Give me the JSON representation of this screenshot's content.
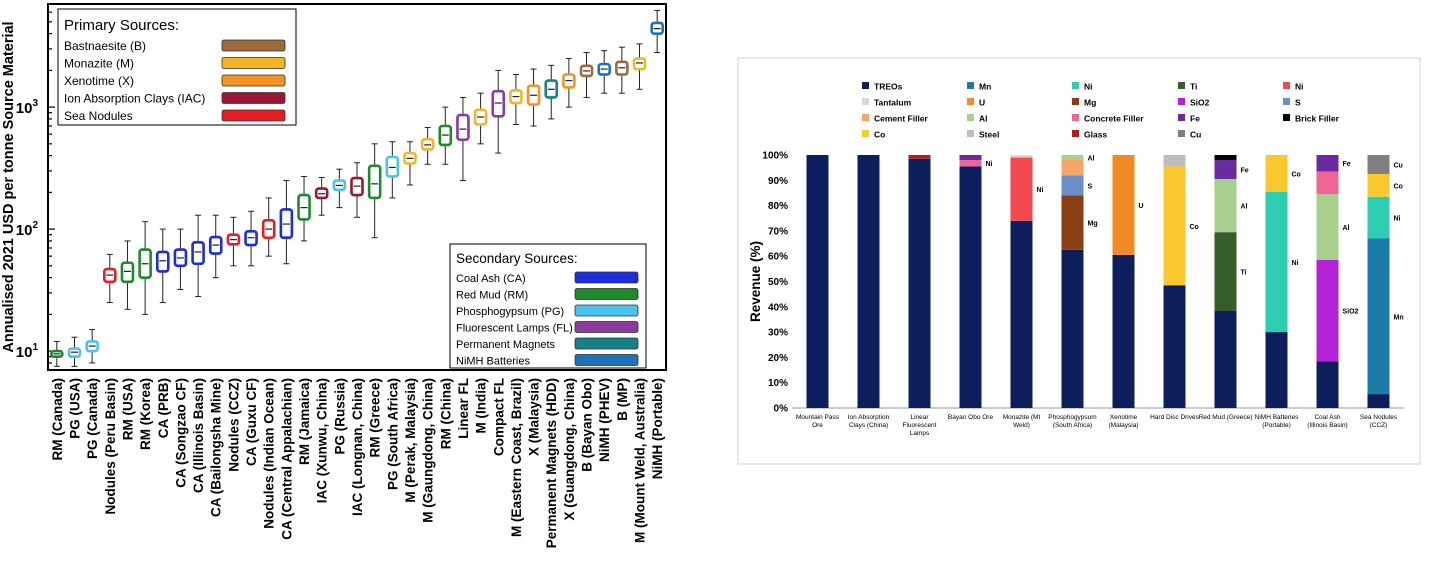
{
  "chart_data": [
    {
      "type": "boxplot",
      "title": "",
      "ylabel": "Annualised 2021 USD per tonne Source Material",
      "yscale": "log",
      "ylim": [
        7,
        7000
      ],
      "yticks": [
        10,
        100,
        1000
      ],
      "ytick_labels": [
        "10",
        "10",
        "10"
      ],
      "ytick_sup": [
        "1",
        "2",
        "3"
      ],
      "legend_primary": {
        "title": "Primary Sources:",
        "items": [
          {
            "label": "Bastnaesite (B)",
            "color": "#9C6A3C"
          },
          {
            "label": "Monazite (M)",
            "color": "#F1B52A"
          },
          {
            "label": "Xenotime (X)",
            "color": "#F39322"
          },
          {
            "label": "Ion Absorption Clays (IAC)",
            "color": "#9C1733"
          },
          {
            "label": "Sea Nodules",
            "color": "#E51E25"
          }
        ]
      },
      "legend_secondary": {
        "title": "Secondary Sources:",
        "items": [
          {
            "label": "Coal Ash (CA)",
            "color": "#1C2DDC"
          },
          {
            "label": "Red Mud (RM)",
            "color": "#1E8A2A"
          },
          {
            "label": "Phosphogypsum (PG)",
            "color": "#49C3EE"
          },
          {
            "label": "Fluorescent Lamps (FL)",
            "color": "#8B3A9E"
          },
          {
            "label": "Permanent Magnets",
            "color": "#177F86"
          },
          {
            "label": "NiMH Batteries",
            "color": "#1D71B8"
          }
        ]
      },
      "boxes": [
        {
          "label": "RM (Canada)",
          "color": "#1E8A2A",
          "med": 9.5,
          "q1": 9.0,
          "q3": 10.0,
          "min": 7.5,
          "max": 12
        },
        {
          "label": "PG (USA)",
          "color": "#49C3EE",
          "med": 9.8,
          "q1": 9.0,
          "q3": 10.5,
          "min": 7.5,
          "max": 13
        },
        {
          "label": "PG (Canada)",
          "color": "#49C3EE",
          "med": 11,
          "q1": 10,
          "q3": 12,
          "min": 8,
          "max": 15
        },
        {
          "label": "Nodules (Peru Basin)",
          "color": "#E51E25",
          "med": 42,
          "q1": 37,
          "q3": 47,
          "min": 25,
          "max": 62
        },
        {
          "label": "RM (USA)",
          "color": "#1E8A2A",
          "med": 45,
          "q1": 37,
          "q3": 53,
          "min": 22,
          "max": 80
        },
        {
          "label": "RM (Korea)",
          "color": "#1E8A2A",
          "med": 52,
          "q1": 40,
          "q3": 68,
          "min": 20,
          "max": 115
        },
        {
          "label": "CA (PRB)",
          "color": "#1C2DDC",
          "med": 55,
          "q1": 45,
          "q3": 65,
          "min": 25,
          "max": 100
        },
        {
          "label": "CA (Songzao CF)",
          "color": "#1C2DDC",
          "med": 58,
          "q1": 50,
          "q3": 68,
          "min": 32,
          "max": 100
        },
        {
          "label": "CA (Illinois Basin)",
          "color": "#1C2DDC",
          "med": 65,
          "q1": 52,
          "q3": 78,
          "min": 28,
          "max": 130
        },
        {
          "label": "CA (Bailongsha Mine)",
          "color": "#1C2DDC",
          "med": 74,
          "q1": 63,
          "q3": 86,
          "min": 40,
          "max": 130
        },
        {
          "label": "Nodules (CCZ)",
          "color": "#E51E25",
          "med": 82,
          "q1": 75,
          "q3": 90,
          "min": 50,
          "max": 125
        },
        {
          "label": "CA (Guxu CF)",
          "color": "#1C2DDC",
          "med": 85,
          "q1": 74,
          "q3": 96,
          "min": 50,
          "max": 140
        },
        {
          "label": "Nodules (Indian Ocean)",
          "color": "#E51E25",
          "med": 100,
          "q1": 85,
          "q3": 118,
          "min": 60,
          "max": 180
        },
        {
          "label": "CA (Central Appalachian)",
          "color": "#1C2DDC",
          "med": 110,
          "q1": 85,
          "q3": 145,
          "min": 52,
          "max": 250
        },
        {
          "label": "RM (Jamaica)",
          "color": "#1E8A2A",
          "med": 150,
          "q1": 120,
          "q3": 190,
          "min": 80,
          "max": 270
        },
        {
          "label": "IAC (Xunwu, China)",
          "color": "#9C1733",
          "med": 195,
          "q1": 180,
          "q3": 215,
          "min": 130,
          "max": 265
        },
        {
          "label": "PG (Russia)",
          "color": "#49C3EE",
          "med": 228,
          "q1": 210,
          "q3": 250,
          "min": 150,
          "max": 310
        },
        {
          "label": "IAC (Longnan, China)",
          "color": "#9C1733",
          "med": 225,
          "q1": 190,
          "q3": 262,
          "min": 125,
          "max": 350
        },
        {
          "label": "RM (Greece)",
          "color": "#1E8A2A",
          "med": 235,
          "q1": 180,
          "q3": 330,
          "min": 85,
          "max": 500
        },
        {
          "label": "PG (South Africa)",
          "color": "#49C3EE",
          "med": 320,
          "q1": 270,
          "q3": 390,
          "min": 180,
          "max": 520
        },
        {
          "label": "M (Perak, Malaysia)",
          "color": "#F1B52A",
          "med": 380,
          "q1": 345,
          "q3": 420,
          "min": 230,
          "max": 520
        },
        {
          "label": "M (Gaungdong, China)",
          "color": "#F1B52A",
          "med": 490,
          "q1": 450,
          "q3": 545,
          "min": 340,
          "max": 680
        },
        {
          "label": "RM (China)",
          "color": "#1E8A2A",
          "med": 590,
          "q1": 490,
          "q3": 700,
          "min": 340,
          "max": 1000
        },
        {
          "label": "Linear FL",
          "color": "#8B3A9E",
          "med": 660,
          "q1": 540,
          "q3": 860,
          "min": 250,
          "max": 1200
        },
        {
          "label": "M (India)",
          "color": "#F1B52A",
          "med": 830,
          "q1": 720,
          "q3": 950,
          "min": 500,
          "max": 1300
        },
        {
          "label": "Compact FL",
          "color": "#8B3A9E",
          "med": 1080,
          "q1": 840,
          "q3": 1350,
          "min": 420,
          "max": 2000
        },
        {
          "label": "M (Eastern Coast, Brazil)",
          "color": "#F1B52A",
          "med": 1220,
          "q1": 1080,
          "q3": 1370,
          "min": 720,
          "max": 1850
        },
        {
          "label": "X (Malaysia)",
          "color": "#F39322",
          "med": 1250,
          "q1": 1050,
          "q3": 1500,
          "min": 700,
          "max": 2050
        },
        {
          "label": "Permanent Magnets (HDD)",
          "color": "#177F86",
          "med": 1400,
          "q1": 1200,
          "q3": 1650,
          "min": 800,
          "max": 2200
        },
        {
          "label": "X (Guangdong, China)",
          "color": "#F39322",
          "med": 1650,
          "q1": 1450,
          "q3": 1850,
          "min": 1000,
          "max": 2500
        },
        {
          "label": "B (Bayan Obo)",
          "color": "#9C6A3C",
          "med": 1980,
          "q1": 1800,
          "q3": 2180,
          "min": 1200,
          "max": 2800
        },
        {
          "label": "NiMH (PHEV)",
          "color": "#1D71B8",
          "med": 2050,
          "q1": 1850,
          "q3": 2250,
          "min": 1300,
          "max": 2900
        },
        {
          "label": "B (MP)",
          "color": "#9C6A3C",
          "med": 2100,
          "q1": 1850,
          "q3": 2350,
          "min": 1300,
          "max": 3100
        },
        {
          "label": "M (Mount Weld, Australia)",
          "color": "#F1B52A",
          "med": 2300,
          "q1": 2050,
          "q3": 2500,
          "min": 1400,
          "max": 3300
        },
        {
          "label": "NiMH (Portable)",
          "color": "#1D71B8",
          "med": 4400,
          "q1": 4000,
          "q3": 4900,
          "min": 2800,
          "max": 6200
        }
      ]
    },
    {
      "type": "stacked-bar",
      "title": "",
      "ylabel": "Revenue (%)",
      "ylim": [
        0,
        100
      ],
      "ytick_labels": [
        "0%",
        "10%",
        "20%",
        "30%",
        "40%",
        "50%",
        "60%",
        "70%",
        "80%",
        "90%",
        "100%"
      ],
      "legend": [
        {
          "name": "TREOs",
          "color": "#0C1F5C"
        },
        {
          "name": "Mn",
          "color": "#1A7AA8"
        },
        {
          "name": "Ni",
          "color": "#2ECDB0"
        },
        {
          "name": "Ti",
          "color": "#345E2A"
        },
        {
          "name": "Ni",
          "color": "#F2484F"
        },
        {
          "name": "Tantalum",
          "color": "#D6D6D6"
        },
        {
          "name": "U",
          "color": "#F08A22"
        },
        {
          "name": "Mg",
          "color": "#8A3F12"
        },
        {
          "name": "SiO2",
          "color": "#B521D6"
        },
        {
          "name": "S",
          "color": "#6A8FCB"
        },
        {
          "name": "Cement Filler",
          "color": "#F6A566"
        },
        {
          "name": "Al",
          "color": "#A8D08D"
        },
        {
          "name": "Concrete Filler",
          "color": "#F06496"
        },
        {
          "name": "Fe",
          "color": "#6D2AA0"
        },
        {
          "name": "Brick Filler",
          "color": "#000000"
        },
        {
          "name": "Co",
          "color": "#F8C82C"
        },
        {
          "name": "Steel",
          "color": "#BDBDBD"
        },
        {
          "name": "Glass",
          "color": "#B01C20"
        },
        {
          "name": "Cu",
          "color": "#808080"
        }
      ],
      "bars": [
        {
          "category": "Mountain Pass Ore",
          "segments": [
            {
              "name": "TREOs",
              "value": 100,
              "color": "#0C1F5C"
            }
          ]
        },
        {
          "category": "Ion Absorption Clays (China)",
          "segments": [
            {
              "name": "TREOs",
              "value": 100,
              "color": "#0C1F5C"
            }
          ]
        },
        {
          "category": "Linear Fluorescent Lamps",
          "segments": [
            {
              "name": "TREOs",
              "value": 98.5,
              "color": "#0C1F5C"
            },
            {
              "name": "Glass",
              "value": 1.5,
              "color": "#B01C20"
            }
          ]
        },
        {
          "category": "Bayan Obo Ore",
          "segments": [
            {
              "name": "TREOs",
              "value": 95.5,
              "color": "#0C1F5C"
            },
            {
              "name": "Ni",
              "value": 2.5,
              "color": "#F06496",
              "label": "Ni"
            },
            {
              "name": "Fe",
              "value": 2,
              "color": "#6D2AA0"
            }
          ]
        },
        {
          "category": "Monazite (Mt Weld)",
          "segments": [
            {
              "name": "TREOs",
              "value": 74,
              "color": "#0C1F5C"
            },
            {
              "name": "Ni",
              "value": 25,
              "color": "#F2484F",
              "label": "Ni"
            },
            {
              "name": "Tantalum",
              "value": 1,
              "color": "#D6D6D6"
            }
          ]
        },
        {
          "category": "Phosphogypsum (South Africa)",
          "segments": [
            {
              "name": "TREOs",
              "value": 62.5,
              "color": "#0C1F5C"
            },
            {
              "name": "Mg",
              "value": 21.5,
              "color": "#8A3F12",
              "label": "Mg"
            },
            {
              "name": "S",
              "value": 8,
              "color": "#6A8FCB",
              "label": "S"
            },
            {
              "name": "Cement Filler",
              "value": 6,
              "color": "#F6A566"
            },
            {
              "name": "Al",
              "value": 2,
              "color": "#A8D08D",
              "label": "Al"
            }
          ]
        },
        {
          "category": "Xenotime (Malaysia)",
          "segments": [
            {
              "name": "TREOs",
              "value": 60.5,
              "color": "#0C1F5C"
            },
            {
              "name": "U",
              "value": 39.5,
              "color": "#F08A22",
              "label": "U"
            }
          ]
        },
        {
          "category": "Hard Disc Drives",
          "segments": [
            {
              "name": "TREOs",
              "value": 48.5,
              "color": "#0C1F5C"
            },
            {
              "name": "Co",
              "value": 47,
              "color": "#F8C82C",
              "label": "Co"
            },
            {
              "name": "Steel",
              "value": 4.5,
              "color": "#BDBDBD"
            }
          ]
        },
        {
          "category": "Red Mud (Greece)",
          "segments": [
            {
              "name": "TREOs",
              "value": 38.5,
              "color": "#0C1F5C"
            },
            {
              "name": "Ti",
              "value": 31,
              "color": "#345E2A",
              "label": "Ti"
            },
            {
              "name": "Al",
              "value": 21,
              "color": "#A8D08D",
              "label": "Al"
            },
            {
              "name": "Fe",
              "value": 7.5,
              "color": "#6D2AA0",
              "label": "Fe"
            },
            {
              "name": "Brick Filler",
              "value": 2,
              "color": "#000000"
            }
          ]
        },
        {
          "category": "NiMH Batteries (Portable)",
          "segments": [
            {
              "name": "TREOs",
              "value": 30,
              "color": "#0C1F5C"
            },
            {
              "name": "Ni",
              "value": 55.5,
              "color": "#2ECDB0",
              "label": "Ni"
            },
            {
              "name": "Co",
              "value": 14.5,
              "color": "#F8C82C",
              "label": "Co"
            }
          ]
        },
        {
          "category": "Coal Ash (Illinois Basin)",
          "segments": [
            {
              "name": "TREOs",
              "value": 18.5,
              "color": "#0C1F5C"
            },
            {
              "name": "SiO2",
              "value": 40,
              "color": "#B521D6",
              "label": "SiO2"
            },
            {
              "name": "Al",
              "value": 26,
              "color": "#A8D08D",
              "label": "Al"
            },
            {
              "name": "Concrete Filler",
              "value": 9,
              "color": "#F06496"
            },
            {
              "name": "Fe",
              "value": 6.5,
              "color": "#6D2AA0",
              "label": "Fe"
            }
          ]
        },
        {
          "category": "Sea Nodules (CCZ)",
          "segments": [
            {
              "name": "TREOs",
              "value": 5.5,
              "color": "#0C1F5C"
            },
            {
              "name": "Mn",
              "value": 61.5,
              "color": "#1A7AA8",
              "label": "Mn"
            },
            {
              "name": "Ni",
              "value": 16.5,
              "color": "#2ECDB0",
              "label": "Ni"
            },
            {
              "name": "Co",
              "value": 9,
              "color": "#F8C82C",
              "label": "Co"
            },
            {
              "name": "Cu",
              "value": 7.5,
              "color": "#808080",
              "label": "Cu"
            }
          ]
        }
      ]
    }
  ]
}
